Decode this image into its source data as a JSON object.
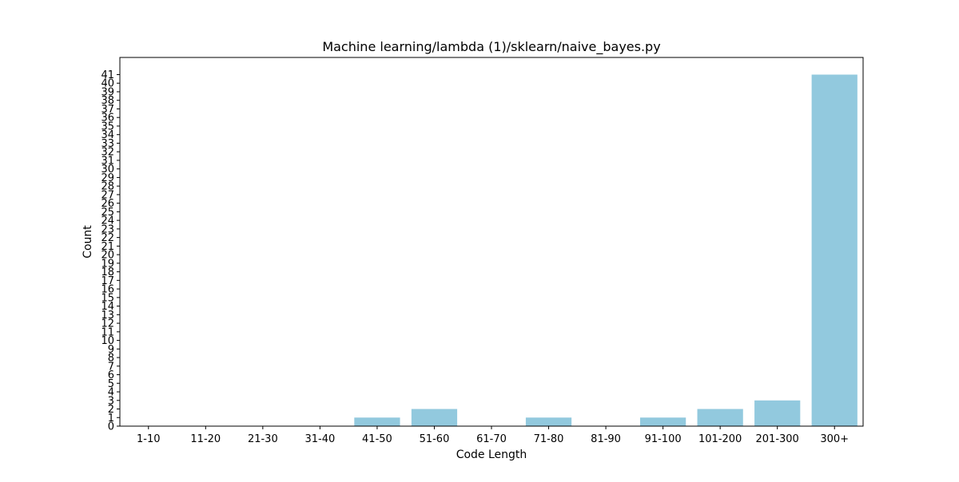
{
  "chart_data": {
    "type": "bar",
    "title": "Machine learning/lambda (1)/sklearn/naive_bayes.py",
    "xlabel": "Code Length",
    "ylabel": "Count",
    "categories": [
      "1-10",
      "11-20",
      "21-30",
      "31-40",
      "41-50",
      "51-60",
      "61-70",
      "71-80",
      "81-90",
      "91-100",
      "101-200",
      "201-300",
      "300+"
    ],
    "values": [
      0,
      0,
      0,
      0,
      1,
      2,
      0,
      1,
      0,
      1,
      2,
      3,
      41
    ],
    "ylim": [
      0,
      43
    ],
    "yticks": [
      0,
      1,
      2,
      3,
      4,
      5,
      6,
      7,
      8,
      9,
      10,
      11,
      12,
      13,
      14,
      15,
      16,
      17,
      18,
      19,
      20,
      21,
      22,
      23,
      24,
      25,
      26,
      27,
      28,
      29,
      30,
      31,
      32,
      33,
      34,
      35,
      36,
      37,
      38,
      39,
      40,
      41
    ],
    "grid": false,
    "legend": false,
    "colors": {
      "bar": "#92c9de",
      "axes": "#000000",
      "background": "#ffffff"
    }
  }
}
